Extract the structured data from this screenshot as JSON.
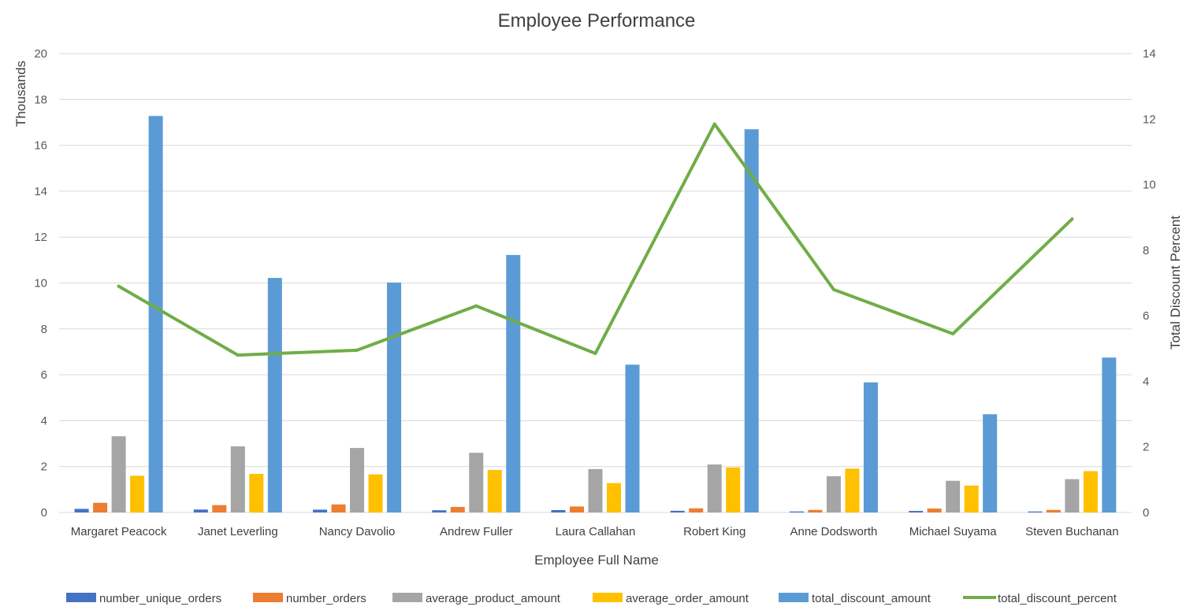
{
  "chart_data": {
    "type": "bar",
    "title": "Employee Performance",
    "xlabel": "Employee Full Name",
    "ylabel": "Thousands",
    "y2label": "Total Discount Percent",
    "ylim": [
      0,
      20
    ],
    "y2lim": [
      0,
      14
    ],
    "yticks": [
      "0",
      "2",
      "4",
      "6",
      "8",
      "10",
      "12",
      "14",
      "16",
      "18",
      "20"
    ],
    "y2ticks": [
      "0",
      "2",
      "4",
      "6",
      "8",
      "10",
      "12",
      "14"
    ],
    "grid": true,
    "legend_position": "bottom",
    "categories": [
      "Margaret Peacock",
      "Janet Leverling",
      "Nancy Davolio",
      "Andrew Fuller",
      "Laura Callahan",
      "Robert King",
      "Anne Dodsworth",
      "Michael Suyama",
      "Steven Buchanan"
    ],
    "series": [
      {
        "name": "number_unique_orders",
        "type": "bar",
        "axis": "left",
        "color": "#4472C4",
        "values": [
          0.156,
          0.127,
          0.123,
          0.096,
          0.104,
          0.072,
          0.043,
          0.067,
          0.042
        ]
      },
      {
        "name": "number_orders",
        "type": "bar",
        "axis": "left",
        "color": "#ED7D31",
        "values": [
          0.42,
          0.32,
          0.35,
          0.24,
          0.26,
          0.18,
          0.11,
          0.17,
          0.11
        ]
      },
      {
        "name": "average_product_amount",
        "type": "bar",
        "axis": "left",
        "color": "#A5A5A5",
        "values": [
          3.32,
          2.88,
          2.81,
          2.6,
          1.89,
          2.09,
          1.58,
          1.38,
          1.45
        ]
      },
      {
        "name": "average_order_amount",
        "type": "bar",
        "axis": "left",
        "color": "#FFC000",
        "values": [
          1.6,
          1.68,
          1.66,
          1.85,
          1.28,
          1.96,
          1.91,
          1.17,
          1.8
        ]
      },
      {
        "name": "total_discount_amount",
        "type": "bar",
        "axis": "left",
        "color": "#5B9BD5",
        "values": [
          17.28,
          10.22,
          10.02,
          11.22,
          6.44,
          16.7,
          5.67,
          4.28,
          6.75
        ]
      },
      {
        "name": "total_discount_percent",
        "type": "line",
        "axis": "right",
        "color": "#70AD47",
        "values": [
          6.9,
          4.8,
          4.95,
          6.3,
          4.85,
          11.85,
          6.8,
          5.45,
          8.95
        ]
      }
    ]
  }
}
